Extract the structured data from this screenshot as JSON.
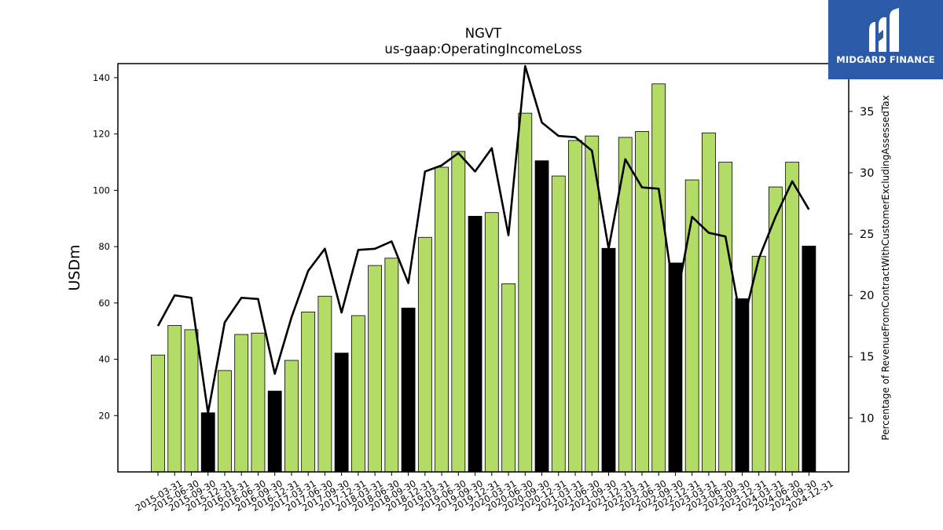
{
  "brand": {
    "name": "MIDGARD FINANCE",
    "bg_color": "#2b5aa8",
    "mark_icon": "midgard-m-icon"
  },
  "chart_data": {
    "type": "bar",
    "title": "NGVT",
    "subtitle": "us-gaap:OperatingIncomeLoss",
    "ylabel": "USDm",
    "y2label": "Percentage of RevenueFromContractWithCustomerExcludingAssessedTax",
    "ylim": [
      0,
      145
    ],
    "y2lim": [
      5.6,
      38.9
    ],
    "yticks": [
      20,
      40,
      60,
      80,
      100,
      120,
      140
    ],
    "y2ticks": [
      10,
      15,
      20,
      25,
      30,
      35
    ],
    "grid": false,
    "colors": {
      "bar": "#b2dc66",
      "bar_highlight": "#000000",
      "line": "#000000"
    },
    "categories": [
      "2015-03-31",
      "2015-06-30",
      "2015-09-30",
      "2015-12-31",
      "2016-03-31",
      "2016-06-30",
      "2016-09-30",
      "2016-12-31",
      "2017-03-31",
      "2017-06-30",
      "2017-09-30",
      "2017-12-31",
      "2018-03-31",
      "2018-06-30",
      "2018-09-30",
      "2018-12-31",
      "2019-03-31",
      "2019-06-30",
      "2019-09-30",
      "2019-12-31",
      "2020-03-31",
      "2020-06-30",
      "2020-09-30",
      "2020-12-31",
      "2021-03-31",
      "2021-06-30",
      "2021-09-30",
      "2021-12-31",
      "2022-03-31",
      "2022-06-30",
      "2022-09-30",
      "2022-12-31",
      "2023-03-31",
      "2023-06-30",
      "2023-09-30",
      "2023-12-31",
      "2024-03-31",
      "2024-06-30",
      "2024-09-30",
      "2024-12-31"
    ],
    "series": [
      {
        "type": "bar",
        "values": [
          41.5,
          52,
          50.5,
          21,
          36,
          48.8,
          49.3,
          28.7,
          39.6,
          56.8,
          62.4,
          42.2,
          55.5,
          73.3,
          75.9,
          58.2,
          83.3,
          108.2,
          113.8,
          90.8,
          92.1,
          66.8,
          127.4,
          110.5,
          105.1,
          117.7,
          119.3,
          79.4,
          118.8,
          120.9,
          137.8,
          74.2,
          103.7,
          120.4,
          110,
          61.5,
          76.6,
          101.2,
          110,
          80.2
        ],
        "highlight": [
          false,
          false,
          false,
          true,
          false,
          false,
          false,
          true,
          false,
          false,
          false,
          true,
          false,
          false,
          false,
          true,
          false,
          false,
          false,
          true,
          false,
          false,
          false,
          true,
          false,
          false,
          false,
          true,
          false,
          false,
          false,
          true,
          false,
          false,
          false,
          true,
          false,
          false,
          false,
          true
        ]
      },
      {
        "type": "line",
        "axis": "right",
        "values": [
          17.5,
          20,
          19.8,
          10.4,
          17.8,
          19.8,
          19.7,
          13.6,
          18.2,
          22,
          23.8,
          18.6,
          23.7,
          23.8,
          24.4,
          21,
          30.1,
          30.6,
          31.6,
          30.1,
          32,
          24.9,
          38.7,
          34.1,
          33,
          32.9,
          31.8,
          23.8,
          31.1,
          28.8,
          28.7,
          19.2,
          26.4,
          25.1,
          24.8,
          17.4,
          23,
          26.4,
          29.3,
          27
        ]
      }
    ]
  }
}
